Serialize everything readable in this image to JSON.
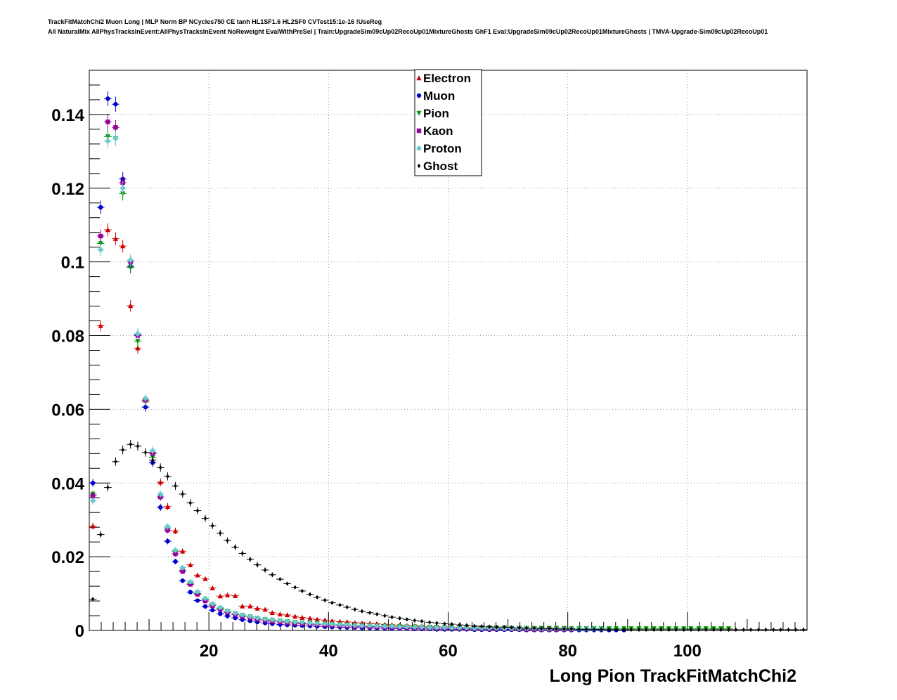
{
  "header": {
    "line1": "TrackFitMatchChi2 Muon Long | MLP Norm BP NCycles750 CE tanh HL1SF1.6 HL2SF0 CVTest15:1e-16 !UseReg",
    "line2": "All NaturalMix AllPhysTracksInEvent:AllPhysTracksInEvent NoReweight EvalWithPreSel | Train:UpgradeSim09cUp02RecoUp01MixtureGhosts GhF1 Eval:UpgradeSim09cUp02RecoUp01MixtureGhosts | TMVA-Upgrade-Sim09cUp02RecoUp01"
  },
  "chart_data": {
    "type": "scatter",
    "xlabel": "Long Pion TrackFitMatchChi2",
    "ylabel": "",
    "xlim": [
      0,
      120
    ],
    "ylim": [
      0,
      0.152
    ],
    "xticks": [
      20,
      40,
      60,
      80,
      100
    ],
    "yticks": [
      0,
      0.02,
      0.04,
      0.06,
      0.08,
      0.1,
      0.12,
      0.14
    ],
    "ytick_labels": [
      "0",
      "0.02",
      "0.04",
      "0.06",
      "0.08",
      "0.1",
      "0.12",
      "0.14"
    ],
    "grid": true,
    "legend_position": "top-center",
    "series": [
      {
        "name": "Electron",
        "color": "#cc0000",
        "marker": "triangle-up",
        "x": [
          0.6,
          1.9,
          3.1,
          4.4,
          5.6,
          6.9,
          8.1,
          9.4,
          10.6,
          11.9,
          13.1,
          14.4,
          15.6,
          16.9,
          18.1,
          19.4,
          20.6,
          21.9,
          23.1,
          24.4,
          25.6,
          26.9,
          28.1,
          29.4,
          30.6,
          31.9,
          33.1,
          34.4,
          35.6,
          36.9,
          38.1,
          39.4,
          40.6,
          41.9,
          43.1,
          44.4,
          45.6,
          46.9,
          48.1,
          49.4,
          50.6,
          51.9,
          53.1,
          54.4,
          55.6,
          56.9,
          58.1,
          59.4,
          60.6,
          61.9,
          63.1,
          64.4,
          65.6,
          66.9,
          68.1,
          69.4,
          70.6,
          71.9,
          73.1,
          74.4,
          75.6,
          76.9,
          78.1
        ],
        "y": [
          0.0283,
          0.0827,
          0.1087,
          0.1063,
          0.1043,
          0.0881,
          0.0766,
          0.0625,
          0.0483,
          0.0402,
          0.0336,
          0.027,
          0.0215,
          0.0178,
          0.015,
          0.014,
          0.0115,
          0.0093,
          0.0096,
          0.0094,
          0.0066,
          0.0066,
          0.006,
          0.0057,
          0.0048,
          0.0044,
          0.0042,
          0.0038,
          0.0035,
          0.0033,
          0.003,
          0.0028,
          0.0026,
          0.0024,
          0.0023,
          0.0021,
          0.002,
          0.0019,
          0.0018,
          0.0016,
          0.0015,
          0.0014,
          0.0013,
          0.0012,
          0.0011,
          0.001,
          0.001,
          0.0009,
          0.0008,
          0.0008,
          0.0007,
          0.0007,
          0.0006,
          0.0006,
          0.0005,
          0.0005,
          0.0005,
          0.0004,
          0.0004,
          0.0004,
          0.0003,
          0.0003,
          0.0003
        ]
      },
      {
        "name": "Muon",
        "color": "#0000cc",
        "marker": "circle",
        "x": [
          0.6,
          1.9,
          3.1,
          4.4,
          5.6,
          6.9,
          8.1,
          9.4,
          10.6,
          11.9,
          13.1,
          14.4,
          15.6,
          16.9,
          18.1,
          19.4,
          20.6,
          21.9,
          23.1,
          24.4,
          25.6,
          26.9,
          28.1,
          29.4,
          30.6,
          31.9,
          33.1,
          34.4,
          35.6,
          36.9,
          38.1,
          39.4,
          40.6,
          41.9,
          43.1,
          44.4,
          45.6,
          46.9,
          48.1,
          49.4,
          50.6,
          51.9,
          53.1,
          54.4,
          55.6,
          56.9,
          58.1,
          59.4,
          60.6,
          61.9,
          63.1,
          64.4,
          65.6,
          66.9,
          68.1,
          69.4,
          70.6,
          71.9,
          73.1,
          74.4,
          75.6,
          76.9,
          78.1,
          79.4,
          80.6,
          81.9,
          83.1,
          84.4,
          85.6,
          86.9,
          88.1,
          89.4
        ],
        "y": [
          0.04,
          0.1148,
          0.1443,
          0.1428,
          0.1225,
          0.0988,
          0.0802,
          0.0606,
          0.0455,
          0.0334,
          0.0242,
          0.0187,
          0.0135,
          0.0104,
          0.0081,
          0.0065,
          0.0055,
          0.0045,
          0.0039,
          0.0034,
          0.0029,
          0.0026,
          0.0023,
          0.002,
          0.0018,
          0.0016,
          0.0015,
          0.0014,
          0.0013,
          0.0012,
          0.0011,
          0.001,
          0.0009,
          0.0009,
          0.0008,
          0.0008,
          0.0007,
          0.0007,
          0.0006,
          0.0006,
          0.0005,
          0.0005,
          0.0005,
          0.0004,
          0.0004,
          0.0004,
          0.0003,
          0.0003,
          0.0003,
          0.0003,
          0.0003,
          0.0002,
          0.0002,
          0.0002,
          0.0002,
          0.0002,
          0.0002,
          0.0002,
          0.0001,
          0.0001,
          0.0001,
          0.0001,
          0.0001,
          0.0001,
          0.0001,
          0.0001,
          0.0001,
          0.0001,
          0.0001,
          0.0001,
          0.0001,
          0.0001
        ]
      },
      {
        "name": "Pion",
        "color": "#009900",
        "marker": "triangle-down",
        "x": [
          0.6,
          1.9,
          3.1,
          4.4,
          5.6,
          6.9,
          8.1,
          9.4,
          10.6,
          11.9,
          13.1,
          14.4,
          15.6,
          16.9,
          18.1,
          19.4,
          20.6,
          21.9,
          23.1,
          24.4,
          25.6,
          26.9,
          28.1,
          29.4,
          30.6,
          31.9,
          33.1,
          34.4,
          35.6,
          36.9,
          38.1,
          39.4,
          40.6,
          41.9,
          43.1,
          44.4,
          45.6,
          46.9,
          48.1,
          49.4,
          50.6,
          51.9,
          53.1,
          54.4,
          55.6,
          56.9,
          58.1,
          59.4,
          60.6,
          61.9,
          63.1,
          64.4,
          65.6,
          66.9,
          68.1,
          69.4,
          70.6,
          71.9,
          73.1,
          74.4,
          75.6,
          76.9,
          78.1,
          79.4,
          80.6,
          81.9,
          83.1,
          84.4,
          85.6,
          86.9,
          88.1,
          89.4,
          90.6,
          91.9,
          93.1,
          94.4,
          95.6,
          96.9,
          98.1,
          99.4,
          100.6,
          101.9,
          103.1,
          104.4,
          105.6,
          106.9
        ],
        "y": [
          0.037,
          0.105,
          0.134,
          0.1335,
          0.1185,
          0.0985,
          0.0785,
          0.062,
          0.047,
          0.0362,
          0.0278,
          0.0215,
          0.0163,
          0.0128,
          0.01,
          0.0083,
          0.007,
          0.006,
          0.0052,
          0.0046,
          0.0041,
          0.0037,
          0.0033,
          0.003,
          0.0028,
          0.0026,
          0.0024,
          0.0022,
          0.0021,
          0.002,
          0.0019,
          0.0018,
          0.0017,
          0.0016,
          0.0015,
          0.0014,
          0.0013,
          0.0013,
          0.0012,
          0.0012,
          0.0011,
          0.0011,
          0.001,
          0.001,
          0.0009,
          0.0009,
          0.0009,
          0.0008,
          0.0008,
          0.0008,
          0.0008,
          0.0007,
          0.0007,
          0.0007,
          0.0007,
          0.0007,
          0.0006,
          0.0006,
          0.0006,
          0.0006,
          0.0006,
          0.0006,
          0.0006,
          0.0006,
          0.0005,
          0.0005,
          0.0005,
          0.0005,
          0.0005,
          0.0005,
          0.0005,
          0.0005,
          0.0005,
          0.0005,
          0.0005,
          0.0005,
          0.0005,
          0.0005,
          0.0005,
          0.0005,
          0.0005,
          0.0005,
          0.0005,
          0.0005,
          0.0005,
          0.0005
        ]
      },
      {
        "name": "Kaon",
        "color": "#990099",
        "marker": "square",
        "x": [
          0.6,
          1.9,
          3.1,
          4.4,
          5.6,
          6.9,
          8.1,
          9.4,
          10.6,
          11.9,
          13.1,
          14.4,
          15.6,
          16.9,
          18.1,
          19.4,
          20.6,
          21.9,
          23.1,
          24.4,
          25.6,
          26.9,
          28.1,
          29.4,
          30.6,
          31.9,
          33.1,
          34.4,
          35.6,
          36.9,
          38.1,
          39.4,
          40.6,
          41.9,
          43.1,
          44.4,
          45.6,
          46.9,
          48.1,
          49.4,
          50.6,
          51.9,
          53.1,
          54.4,
          55.6,
          56.9,
          58.1,
          59.4,
          60.6,
          61.9,
          63.1,
          64.4,
          65.6,
          66.9,
          68.1,
          69.4,
          70.6,
          71.9,
          73.1,
          74.4,
          75.6,
          76.9,
          78.1,
          79.4,
          80.6
        ],
        "y": [
          0.0365,
          0.107,
          0.138,
          0.1365,
          0.1215,
          0.1,
          0.08,
          0.0625,
          0.048,
          0.0362,
          0.0272,
          0.0208,
          0.016,
          0.0125,
          0.0098,
          0.008,
          0.0067,
          0.0057,
          0.0049,
          0.0043,
          0.0038,
          0.0034,
          0.003,
          0.0027,
          0.0025,
          0.0023,
          0.0021,
          0.0019,
          0.0018,
          0.0017,
          0.0016,
          0.0015,
          0.0014,
          0.0013,
          0.0012,
          0.0011,
          0.0011,
          0.001,
          0.001,
          0.0009,
          0.0009,
          0.0008,
          0.0008,
          0.0007,
          0.0007,
          0.0007,
          0.0006,
          0.0006,
          0.0006,
          0.0005,
          0.0005,
          0.0005,
          0.0005,
          0.0004,
          0.0004,
          0.0004,
          0.0004,
          0.0004,
          0.0003,
          0.0003,
          0.0003,
          0.0003,
          0.0003,
          0.0003,
          0.0003
        ]
      },
      {
        "name": "Proton",
        "color": "#66cccc",
        "marker": "cross",
        "x": [
          0.6,
          1.9,
          3.1,
          4.4,
          5.6,
          6.9,
          8.1,
          9.4,
          10.6,
          11.9,
          13.1,
          14.4,
          15.6,
          16.9,
          18.1,
          19.4,
          20.6,
          21.9,
          23.1,
          24.4,
          25.6,
          26.9,
          28.1,
          29.4,
          30.6,
          31.9,
          33.1,
          34.4,
          35.6,
          36.9,
          38.1,
          39.4,
          40.6,
          41.9,
          43.1,
          44.4,
          45.6,
          46.9,
          48.1,
          49.4,
          50.6,
          51.9,
          53.1,
          54.4,
          55.6,
          56.9,
          58.1,
          59.4,
          60.6,
          61.9,
          63.1,
          64.4,
          65.6,
          66.9,
          68.1,
          69.4,
          70.6,
          71.9,
          73.1,
          74.4,
          75.6,
          76.9,
          78.1,
          79.4,
          80.6,
          81.9,
          83.1,
          84.4,
          85.6
        ],
        "y": [
          0.0352,
          0.1033,
          0.1328,
          0.1335,
          0.12,
          0.1005,
          0.0805,
          0.063,
          0.0488,
          0.037,
          0.0282,
          0.0218,
          0.017,
          0.0132,
          0.0105,
          0.0087,
          0.0072,
          0.0062,
          0.0053,
          0.0047,
          0.0042,
          0.0038,
          0.0034,
          0.0031,
          0.0029,
          0.0027,
          0.0025,
          0.0023,
          0.0022,
          0.002,
          0.0019,
          0.0018,
          0.0017,
          0.0016,
          0.0015,
          0.0014,
          0.0013,
          0.0013,
          0.0012,
          0.0011,
          0.0011,
          0.001,
          0.001,
          0.0009,
          0.0009,
          0.0008,
          0.0008,
          0.0008,
          0.0007,
          0.0007,
          0.0007,
          0.0006,
          0.0006,
          0.0006,
          0.0006,
          0.0005,
          0.0005,
          0.0005,
          0.0005,
          0.0005,
          0.0004,
          0.0004,
          0.0004,
          0.0004,
          0.0004,
          0.0004,
          0.0004,
          0.0004,
          0.0004
        ]
      },
      {
        "name": "Ghost",
        "color": "#000000",
        "marker": "diamond",
        "x": [
          0.6,
          1.9,
          3.1,
          4.4,
          5.6,
          6.9,
          8.1,
          9.4,
          10.6,
          11.9,
          13.1,
          14.4,
          15.6,
          16.9,
          18.1,
          19.4,
          20.6,
          21.9,
          23.1,
          24.4,
          25.6,
          26.9,
          28.1,
          29.4,
          30.6,
          31.9,
          33.1,
          34.4,
          35.6,
          36.9,
          38.1,
          39.4,
          40.6,
          41.9,
          43.1,
          44.4,
          45.6,
          46.9,
          48.1,
          49.4,
          50.6,
          51.9,
          53.1,
          54.4,
          55.6,
          56.9,
          58.1,
          59.4,
          60.6,
          61.9,
          63.1,
          64.4,
          65.6,
          66.9,
          68.1,
          69.4,
          70.6,
          71.9,
          73.1,
          74.4,
          75.6,
          76.9,
          78.1,
          79.4,
          80.6,
          81.9,
          83.1,
          84.4,
          85.6,
          86.9,
          88.1,
          89.4,
          90.6,
          91.9,
          93.1,
          94.4,
          95.6,
          96.9,
          98.1,
          99.4,
          100.6,
          101.9,
          103.1,
          104.4,
          105.6,
          106.9,
          108.1,
          109.4,
          110.6,
          111.9,
          113.1,
          114.4,
          115.6,
          116.9,
          118.1,
          119.4
        ],
        "y": [
          0.0085,
          0.026,
          0.0388,
          0.0458,
          0.049,
          0.0505,
          0.05,
          0.0483,
          0.0462,
          0.0442,
          0.0418,
          0.0392,
          0.037,
          0.0346,
          0.0325,
          0.0304,
          0.0284,
          0.0264,
          0.0244,
          0.0226,
          0.0209,
          0.0193,
          0.0178,
          0.0164,
          0.0151,
          0.0139,
          0.0127,
          0.0117,
          0.0107,
          0.0098,
          0.009,
          0.0082,
          0.0075,
          0.0069,
          0.0063,
          0.0057,
          0.0052,
          0.0048,
          0.0044,
          0.004,
          0.0036,
          0.0033,
          0.003,
          0.0027,
          0.0025,
          0.0022,
          0.002,
          0.0018,
          0.0017,
          0.0015,
          0.0014,
          0.0012,
          0.0011,
          0.001,
          0.0009,
          0.0009,
          0.0008,
          0.0007,
          0.0006,
          0.0006,
          0.0005,
          0.0005,
          0.0004,
          0.0004,
          0.0004,
          0.0003,
          0.0003,
          0.0003,
          0.0003,
          0.0002,
          0.0002,
          0.0002,
          0.0002,
          0.0002,
          0.0002,
          0.0002,
          0.0002,
          0.0002,
          0.0002,
          0.0002,
          0.0002,
          0.0002,
          0.0002,
          0.0002,
          0.0002,
          0.0002,
          0.0002,
          0.0002,
          0.0002,
          0.0002,
          0.0002,
          0.0002,
          0.0002,
          0.0002,
          0.0002,
          0.0002
        ]
      }
    ]
  }
}
